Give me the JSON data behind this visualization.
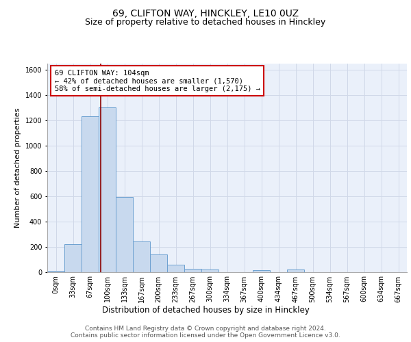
{
  "title1": "69, CLIFTON WAY, HINCKLEY, LE10 0UZ",
  "title2": "Size of property relative to detached houses in Hinckley",
  "xlabel": "Distribution of detached houses by size in Hinckley",
  "ylabel": "Number of detached properties",
  "bin_labels": [
    "0sqm",
    "33sqm",
    "67sqm",
    "100sqm",
    "133sqm",
    "167sqm",
    "200sqm",
    "233sqm",
    "267sqm",
    "300sqm",
    "334sqm",
    "367sqm",
    "400sqm",
    "434sqm",
    "467sqm",
    "500sqm",
    "534sqm",
    "567sqm",
    "600sqm",
    "634sqm",
    "667sqm"
  ],
  "bar_heights": [
    10,
    220,
    1230,
    1300,
    590,
    240,
    140,
    55,
    25,
    20,
    0,
    0,
    15,
    0,
    20,
    0,
    0,
    0,
    0,
    0,
    0
  ],
  "bar_color": "#c8d9ee",
  "bar_edge_color": "#6ca0d0",
  "property_line_x": 3.1,
  "property_line_color": "#8b0000",
  "annotation_text": "69 CLIFTON WAY: 104sqm\n← 42% of detached houses are smaller (1,570)\n58% of semi-detached houses are larger (2,175) →",
  "annotation_box_color": "#ffffff",
  "annotation_box_edge": "#cc0000",
  "ylim": [
    0,
    1650
  ],
  "yticks": [
    0,
    200,
    400,
    600,
    800,
    1000,
    1200,
    1400,
    1600
  ],
  "grid_color": "#d0d8e8",
  "background_color": "#eaf0fa",
  "footer_text": "Contains HM Land Registry data © Crown copyright and database right 2024.\nContains public sector information licensed under the Open Government Licence v3.0.",
  "title1_fontsize": 10,
  "title2_fontsize": 9,
  "xlabel_fontsize": 8.5,
  "ylabel_fontsize": 8,
  "tick_fontsize": 7,
  "annotation_fontsize": 7.5,
  "footer_fontsize": 6.5
}
